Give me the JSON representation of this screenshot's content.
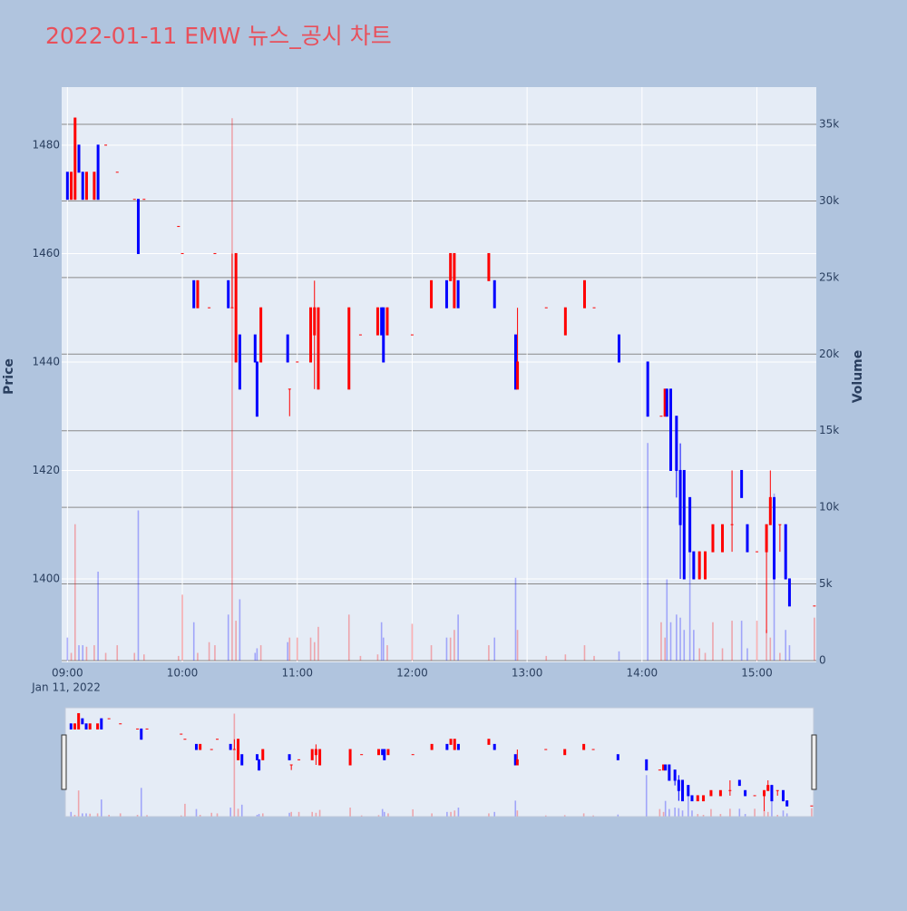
{
  "chart_data": {
    "type": "candlestick",
    "title": "2022-01-11 EMW 뉴스_공시 차트",
    "y_label": "Price",
    "y2_label": "Volume",
    "x_date_label": "Jan 11, 2022",
    "increasing_color": "#ff0000",
    "decreasing_color": "#0000ff",
    "x": [
      "2022-01-11 09:00",
      "2022-01-11 09:02",
      "2022-01-11 09:04",
      "2022-01-11 09:06",
      "2022-01-11 09:08",
      "2022-01-11 09:10",
      "2022-01-11 09:14",
      "2022-01-11 09:16",
      "2022-01-11 09:20",
      "2022-01-11 09:26",
      "2022-01-11 09:35",
      "2022-01-11 09:37",
      "2022-01-11 09:40",
      "2022-01-11 09:58",
      "2022-01-11 10:00",
      "2022-01-11 10:06",
      "2022-01-11 10:08",
      "2022-01-11 10:14",
      "2022-01-11 10:17",
      "2022-01-11 10:24",
      "2022-01-11 10:26",
      "2022-01-11 10:28",
      "2022-01-11 10:30",
      "2022-01-11 10:38",
      "2022-01-11 10:39",
      "2022-01-11 10:41",
      "2022-01-11 10:55",
      "2022-01-11 10:56",
      "2022-01-11 11:00",
      "2022-01-11 11:07",
      "2022-01-11 11:09",
      "2022-01-11 11:11",
      "2022-01-11 11:27",
      "2022-01-11 11:33",
      "2022-01-11 11:42",
      "2022-01-11 11:44",
      "2022-01-11 11:45",
      "2022-01-11 11:47",
      "2022-01-11 12:00",
      "2022-01-11 12:10",
      "2022-01-11 12:18",
      "2022-01-11 12:20",
      "2022-01-11 12:22",
      "2022-01-11 12:24",
      "2022-01-11 12:40",
      "2022-01-11 12:43",
      "2022-01-11 12:54",
      "2022-01-11 12:55",
      "2022-01-11 13:10",
      "2022-01-11 13:20",
      "2022-01-11 13:30",
      "2022-01-11 13:35",
      "2022-01-11 13:48",
      "2022-01-11 14:03",
      "2022-01-11 14:10",
      "2022-01-11 14:12",
      "2022-01-11 14:13",
      "2022-01-11 14:15",
      "2022-01-11 14:18",
      "2022-01-11 14:20",
      "2022-01-11 14:22",
      "2022-01-11 14:25",
      "2022-01-11 14:27",
      "2022-01-11 14:30",
      "2022-01-11 14:33",
      "2022-01-11 14:37",
      "2022-01-11 14:42",
      "2022-01-11 14:47",
      "2022-01-11 14:52",
      "2022-01-11 14:55",
      "2022-01-11 15:00",
      "2022-01-11 15:05",
      "2022-01-11 15:07",
      "2022-01-11 15:09",
      "2022-01-11 15:12",
      "2022-01-11 15:15",
      "2022-01-11 15:17",
      "2022-01-11 15:30"
    ],
    "open": [
      1475,
      1470,
      1470,
      1480,
      1475,
      1470,
      1470,
      1480,
      1480,
      1475,
      1470,
      1470,
      1470,
      1465,
      1460,
      1455,
      1450,
      1450,
      1460,
      1455,
      1450,
      1440,
      1445,
      1445,
      1440,
      1440,
      1445,
      1435,
      1440,
      1440,
      1445,
      1435,
      1435,
      1445,
      1445,
      1450,
      1450,
      1445,
      1445,
      1450,
      1455,
      1455,
      1450,
      1455,
      1455,
      1455,
      1445,
      1435,
      1450,
      1445,
      1450,
      1450,
      1445,
      1440,
      1430,
      1430,
      1435,
      1435,
      1430,
      1420,
      1420,
      1415,
      1405,
      1400,
      1400,
      1405,
      1405,
      1410,
      1420,
      1410,
      1405,
      1405,
      1410,
      1415,
      1410,
      1410,
      1400,
      1395
    ],
    "high": [
      1475,
      1475,
      1485,
      1480,
      1475,
      1475,
      1475,
      1480,
      1480,
      1475,
      1470,
      1470,
      1470,
      1465,
      1460,
      1455,
      1455,
      1450,
      1460,
      1455,
      1460,
      1460,
      1445,
      1445,
      1440,
      1450,
      1445,
      1435,
      1440,
      1450,
      1455,
      1450,
      1450,
      1445,
      1450,
      1450,
      1450,
      1450,
      1445,
      1455,
      1455,
      1460,
      1460,
      1455,
      1460,
      1455,
      1445,
      1450,
      1450,
      1450,
      1455,
      1450,
      1445,
      1440,
      1430,
      1435,
      1435,
      1435,
      1430,
      1425,
      1420,
      1415,
      1405,
      1405,
      1405,
      1410,
      1410,
      1420,
      1420,
      1410,
      1405,
      1410,
      1420,
      1415,
      1410,
      1410,
      1400,
      1395
    ],
    "low": [
      1470,
      1470,
      1470,
      1475,
      1470,
      1470,
      1470,
      1470,
      1480,
      1475,
      1470,
      1460,
      1470,
      1465,
      1460,
      1450,
      1450,
      1450,
      1460,
      1450,
      1450,
      1440,
      1435,
      1440,
      1430,
      1440,
      1440,
      1430,
      1440,
      1440,
      1435,
      1435,
      1435,
      1445,
      1445,
      1445,
      1440,
      1445,
      1445,
      1450,
      1450,
      1455,
      1450,
      1450,
      1455,
      1450,
      1435,
      1435,
      1450,
      1445,
      1450,
      1450,
      1440,
      1430,
      1430,
      1430,
      1430,
      1420,
      1415,
      1400,
      1400,
      1405,
      1400,
      1400,
      1400,
      1405,
      1405,
      1405,
      1415,
      1405,
      1405,
      1390,
      1410,
      1400,
      1405,
      1400,
      1395,
      1395
    ],
    "close": [
      1470,
      1475,
      1485,
      1475,
      1470,
      1475,
      1475,
      1470,
      1480,
      1475,
      1470,
      1460,
      1470,
      1465,
      1460,
      1450,
      1455,
      1450,
      1460,
      1450,
      1450,
      1460,
      1435,
      1440,
      1430,
      1450,
      1440,
      1435,
      1440,
      1450,
      1450,
      1450,
      1450,
      1445,
      1450,
      1445,
      1440,
      1450,
      1445,
      1455,
      1450,
      1460,
      1460,
      1450,
      1460,
      1450,
      1435,
      1440,
      1450,
      1450,
      1455,
      1450,
      1440,
      1430,
      1430,
      1435,
      1430,
      1420,
      1420,
      1410,
      1400,
      1405,
      1400,
      1405,
      1405,
      1410,
      1410,
      1410,
      1415,
      1405,
      1405,
      1410,
      1415,
      1400,
      1410,
      1400,
      1395,
      1395
    ],
    "volume": [
      1500,
      500,
      8900,
      1000,
      1000,
      900,
      1000,
      5800,
      500,
      1000,
      500,
      9800,
      400,
      300,
      4300,
      2500,
      500,
      1200,
      1000,
      3000,
      35400,
      2600,
      4000,
      500,
      800,
      1000,
      1200,
      1500,
      1500,
      1500,
      1200,
      2200,
      3000,
      300,
      400,
      2500,
      1500,
      1000,
      2400,
      1000,
      1500,
      1500,
      2000,
      3000,
      1000,
      1500,
      5400,
      2000,
      300,
      400,
      1000,
      300,
      600,
      14200,
      2500,
      1500,
      5300,
      2500,
      3000,
      2800,
      2000,
      7300,
      2000,
      800,
      500,
      2500,
      800,
      2600,
      2600,
      800,
      2600,
      2000,
      1500,
      10900,
      500,
      2000,
      1000,
      2800
    ],
    "xlim": [
      "2022-01-11 08:57",
      "2022-01-11 15:31"
    ],
    "xticks": [
      {
        "value": "2022-01-11 09:00",
        "label": "09:00"
      },
      {
        "value": "2022-01-11 10:00",
        "label": "10:00"
      },
      {
        "value": "2022-01-11 11:00",
        "label": "11:00"
      },
      {
        "value": "2022-01-11 12:00",
        "label": "12:00"
      },
      {
        "value": "2022-01-11 13:00",
        "label": "13:00"
      },
      {
        "value": "2022-01-11 14:00",
        "label": "14:00"
      },
      {
        "value": "2022-01-11 15:00",
        "label": "15:00"
      }
    ],
    "ylim": [
      1384.6,
      1490.7
    ],
    "yticks": [
      1400,
      1420,
      1440,
      1460,
      1480
    ],
    "y2lim": [
      -120,
      37430
    ],
    "y2ticks": [
      0,
      {
        "value": 5000,
        "label": "5k"
      },
      {
        "value": 10000,
        "label": "10k"
      },
      {
        "value": 15000,
        "label": "15k"
      },
      {
        "value": 20000,
        "label": "20k"
      },
      {
        "value": 25000,
        "label": "25k"
      },
      {
        "value": 30000,
        "label": "30k"
      },
      {
        "value": 35000,
        "label": "35k"
      }
    ],
    "grid": true,
    "rangeslider": true
  }
}
